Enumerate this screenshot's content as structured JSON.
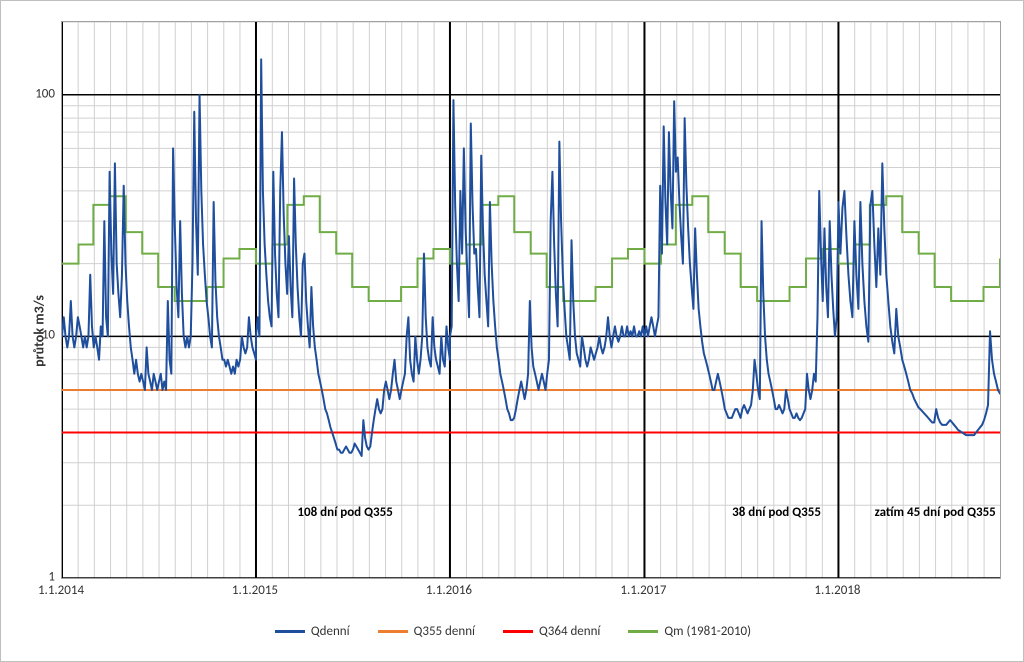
{
  "chart": {
    "type": "line-log",
    "ylabel": "průtok m3/s",
    "yaxis": {
      "scale": "log",
      "min": 1,
      "max": 200,
      "ticks": [
        1,
        10,
        100
      ],
      "grid_color": "#d0d0d0",
      "major_grid_color": "#000000"
    },
    "xaxis": {
      "min": "2014-01-01",
      "max": "2018-11-01",
      "ticks": [
        {
          "date": "2014-01-01",
          "label": "1.1.2014"
        },
        {
          "date": "2015-01-01",
          "label": "1.1.2015"
        },
        {
          "date": "2016-01-01",
          "label": "1.1.2016"
        },
        {
          "date": "2017-01-01",
          "label": "1.1.2017"
        },
        {
          "date": "2018-01-01",
          "label": "1.1.2018"
        }
      ],
      "minor_step_days": 30.44,
      "major_line_color": "#000000",
      "minor_line_color": "#d0d0d0"
    },
    "annotations": [
      {
        "text": "108 dní pod Q355",
        "x_date": "2015-03-20",
        "y": 2.0
      },
      {
        "text": "38 dní pod Q355",
        "x_date": "2017-06-15",
        "y": 2.0
      },
      {
        "text": "zatím 45 dní pod Q355",
        "x_date": "2018-03-10",
        "y": 2.0
      }
    ],
    "series": {
      "q355": {
        "label": "Q355 denní",
        "color": "#ed7d31",
        "width": 2,
        "value": 6.0
      },
      "q364": {
        "label": "Q364 denní",
        "color": "#ff0000",
        "width": 2,
        "value": 4.0
      },
      "qm": {
        "label": "Qm (1981-2010)",
        "color": "#70ad47",
        "width": 2,
        "monthly": [
          20,
          24,
          35,
          38,
          27,
          22,
          16,
          14,
          14,
          16,
          21,
          23
        ]
      },
      "qdaily": {
        "label": "Qdenní",
        "color": "#1f4e9c",
        "width": 2,
        "segments": {
          "2014": [
            10,
            12,
            10,
            9,
            10,
            14,
            10,
            9,
            10,
            12,
            11,
            10,
            9,
            10,
            9,
            10,
            18,
            11,
            9,
            10,
            9,
            8,
            11,
            10,
            30,
            12,
            10,
            48,
            22,
            15,
            52,
            20,
            15,
            12,
            18,
            42,
            20,
            14,
            11,
            9,
            8,
            7,
            8,
            7,
            6.5,
            7,
            6.5,
            6,
            9,
            7,
            6.5,
            6,
            7,
            6.5,
            6,
            6.5,
            7,
            6,
            6.5,
            6,
            14,
            8,
            7,
            60,
            28,
            16,
            12,
            30,
            15,
            10,
            9,
            10,
            9,
            10,
            20,
            85,
            30,
            18,
            100,
            40,
            24,
            18,
            14,
            12,
            10,
            9,
            36,
            17,
            12,
            10,
            9,
            8,
            8,
            7.5,
            8,
            7.5,
            7,
            7.5,
            7,
            8,
            7.5,
            8,
            10,
            9,
            8.5,
            9,
            12,
            10,
            9,
            8.5,
            8
          ],
          "2015": [
            10,
            12,
            10,
            140,
            40,
            24,
            18,
            14,
            12,
            11,
            48,
            22,
            15,
            12,
            40,
            70,
            32,
            20,
            15,
            26,
            16,
            12,
            45,
            24,
            16,
            12,
            10,
            20,
            22,
            14,
            11,
            9,
            16,
            11,
            9,
            8,
            7,
            6.5,
            6,
            5.5,
            5,
            4.8,
            4.5,
            4.2,
            4,
            3.8,
            3.6,
            3.4,
            3.4,
            3.3,
            3.3,
            3.4,
            3.5,
            3.4,
            3.3,
            3.3,
            3.4,
            3.6,
            3.5,
            3.4,
            3.3,
            3.2,
            4.5,
            3.8,
            3.5,
            3.4,
            3.5,
            4,
            4.5,
            5,
            5.5,
            5,
            4.8,
            5,
            6,
            6.5,
            6,
            5.5,
            6,
            7,
            8,
            6.5,
            6,
            5.5,
            6,
            6.5,
            7,
            10,
            12,
            8,
            7,
            6.5,
            10,
            8,
            7,
            8,
            10,
            22,
            12,
            9,
            8,
            7.5,
            12,
            9,
            8,
            7.5,
            7,
            10,
            8,
            7.5,
            11,
            9,
            8
          ],
          "2016": [
            10,
            11,
            95,
            35,
            20,
            14,
            40,
            22,
            60,
            28,
            18,
            12,
            76,
            35,
            22,
            23,
            16,
            12,
            56,
            28,
            18,
            14,
            11,
            36,
            20,
            14,
            11,
            9,
            8,
            7,
            6.5,
            6,
            5.5,
            5,
            4.8,
            4.5,
            4.5,
            4.6,
            5,
            5.5,
            6,
            6.5,
            6,
            5.5,
            6,
            7,
            14,
            9,
            7.5,
            7,
            6.5,
            6,
            6.5,
            7,
            6.5,
            6,
            7,
            8,
            30,
            48,
            24,
            15,
            11,
            64,
            30,
            18,
            13,
            10,
            9,
            8,
            25,
            14,
            10,
            8.5,
            8,
            7.5,
            10,
            9,
            8,
            7.5,
            8,
            9,
            8.5,
            8,
            8.5,
            9,
            10,
            9,
            8.5,
            9,
            10,
            12,
            10,
            9,
            10,
            11,
            10,
            9.5,
            10,
            11,
            10,
            10,
            11,
            10,
            10.5,
            10,
            11,
            10,
            10,
            10.5,
            10,
            11,
            10
          ],
          "2017": [
            10,
            11,
            10,
            11,
            12,
            11,
            10,
            11,
            12,
            42,
            22,
            74,
            36,
            24,
            70,
            40,
            28,
            94,
            48,
            55,
            36,
            26,
            20,
            80,
            42,
            28,
            20,
            16,
            13,
            28,
            18,
            13,
            11,
            9.5,
            8.5,
            8,
            7.5,
            7,
            6.5,
            6,
            6,
            6.5,
            7,
            6.5,
            6,
            5.5,
            5,
            4.8,
            4.6,
            4.6,
            4.6,
            4.8,
            5,
            5,
            4.8,
            4.6,
            5,
            5.2,
            5,
            4.8,
            5,
            5.2,
            6,
            8,
            7,
            6,
            5.5,
            30,
            15,
            10,
            8,
            7,
            6.5,
            6,
            5.5,
            5,
            5,
            5.2,
            5,
            4.8,
            5,
            6,
            5.5,
            5,
            4.8,
            4.6,
            4.6,
            4.8,
            4.6,
            4.5,
            4.6,
            4.8,
            5,
            7,
            6,
            5.5,
            6,
            7,
            6.5,
            12,
            40,
            22,
            14,
            28,
            16,
            12,
            30,
            18,
            13,
            10,
            12,
            34
          ],
          "2018": [
            36,
            22,
            34,
            40,
            26,
            18,
            14,
            12,
            30,
            18,
            13,
            36,
            20,
            14,
            11,
            9.5,
            35,
            40,
            24,
            16,
            28,
            18,
            52,
            28,
            18,
            14,
            11,
            9.5,
            8.5,
            13,
            10,
            9,
            8,
            7.5,
            7,
            6.5,
            6,
            5.8,
            5.5,
            5.3,
            5.1,
            5,
            4.9,
            4.8,
            4.7,
            4.6,
            4.5,
            4.4,
            4.4,
            5,
            4.6,
            4.4,
            4.3,
            4.3,
            4.3,
            4.4,
            4.5,
            4.4,
            4.3,
            4.2,
            4.1,
            4.05,
            4,
            3.95,
            3.9,
            3.9,
            3.9,
            3.9,
            3.9,
            4,
            4.1,
            4.2,
            4.3,
            4.5,
            4.8,
            5.2,
            10.5,
            8,
            7,
            6.5,
            6,
            5.8
          ]
        }
      }
    },
    "legend_order": [
      "qdaily",
      "q355",
      "q364",
      "qm"
    ],
    "background_color": "#ffffff"
  }
}
